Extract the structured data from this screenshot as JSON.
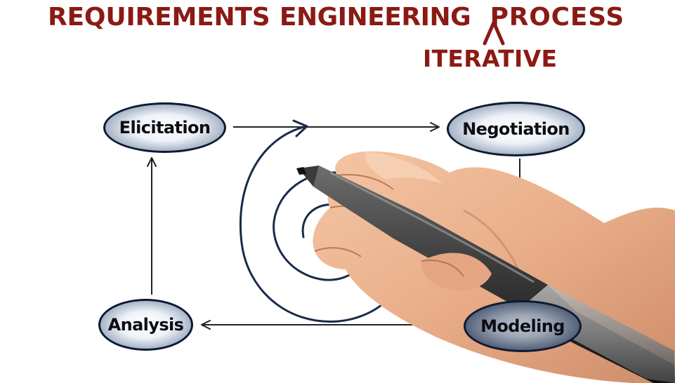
{
  "title": {
    "words": [
      "REQUIREMENTS",
      "ENGINEERING",
      "PROCESS"
    ],
    "insertion_word": "ITERATIVE"
  },
  "nodes": {
    "elicitation": "Elicitation",
    "negotiation": "Negotiation",
    "modeling": "Modeling",
    "analysis": "Analysis"
  },
  "colors": {
    "title_ink": "#8b1a14",
    "node_border": "#0c1a33",
    "arrow_ink": "#222222",
    "spiral_ink": "#1a2a4a"
  },
  "icons": {
    "spiral": "spiral-icon",
    "hand": "hand-holding-pen-icon"
  }
}
